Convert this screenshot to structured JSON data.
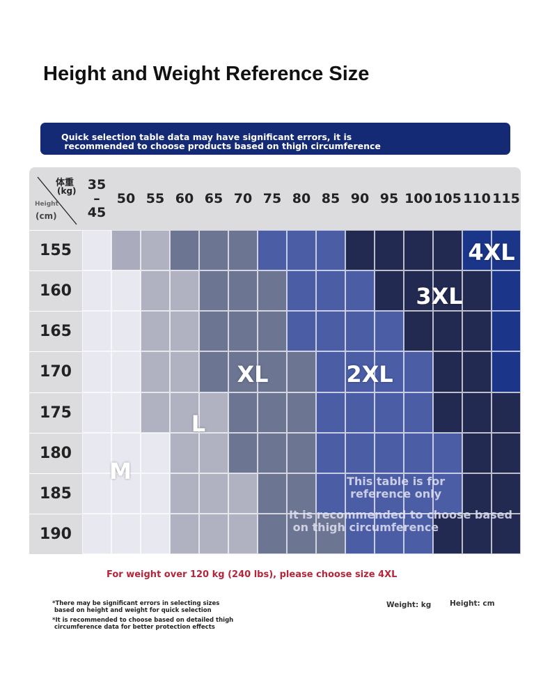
{
  "header": {
    "title": "Height and Weight Reference Size"
  },
  "notice": {
    "text": "Quick selection table data may have significant errors, it is\n recommended to choose products based on thigh circumference"
  },
  "table": {
    "corner": {
      "weight_label": "体重",
      "weight_unit": "(kg)",
      "height_label": "Height",
      "height_unit": "(cm)"
    },
    "columns": [
      "35\n–\n45",
      "50",
      "55",
      "60",
      "65",
      "70",
      "75",
      "80",
      "85",
      "90",
      "95",
      "100",
      "105",
      "110",
      "115"
    ],
    "rows": [
      {
        "height": "155",
        "colors": [
          "#e8e8f0",
          "#aaacbd",
          "#b0b1c1",
          "#6c7592",
          "#6c7592",
          "#6c7592",
          "#4a5da5",
          "#4a5da5",
          "#4a5da5",
          "#222a52",
          "#222a52",
          "#222a52",
          "#222a52",
          "#1b3588",
          "#1b3588"
        ]
      },
      {
        "height": "160",
        "colors": [
          "#e8e8f0",
          "#e8e8f0",
          "#b0b1c1",
          "#b0b1c1",
          "#6c7592",
          "#6c7592",
          "#6c7592",
          "#4a5da5",
          "#4a5da5",
          "#4a5da5",
          "#222a52",
          "#222a52",
          "#222a52",
          "#222a52",
          "#1b3588"
        ]
      },
      {
        "height": "165",
        "colors": [
          "#e8e8f0",
          "#e8e8f0",
          "#b0b1c1",
          "#b0b1c1",
          "#6c7592",
          "#6c7592",
          "#6c7592",
          "#4a5da5",
          "#4a5da5",
          "#4a5da5",
          "#4a5da5",
          "#222a52",
          "#222a52",
          "#222a52",
          "#1b3588"
        ]
      },
      {
        "height": "170",
        "colors": [
          "#e8e8f0",
          "#e8e8f0",
          "#b0b1c1",
          "#b0b1c1",
          "#6c7592",
          "#6c7592",
          "#6c7592",
          "#6c7592",
          "#4a5da5",
          "#4a5da5",
          "#4a5da5",
          "#4a5da5",
          "#222a52",
          "#222a52",
          "#1b3588"
        ]
      },
      {
        "height": "175",
        "colors": [
          "#e8e8f0",
          "#e8e8f0",
          "#b0b1c1",
          "#b0b1c1",
          "#b0b1c1",
          "#6c7592",
          "#6c7592",
          "#6c7592",
          "#4a5da5",
          "#4a5da5",
          "#4a5da5",
          "#4a5da5",
          "#222a52",
          "#222a52",
          "#222a52"
        ]
      },
      {
        "height": "180",
        "colors": [
          "#e8e8f0",
          "#e8e8f0",
          "#e8e8f0",
          "#b0b1c1",
          "#b0b1c1",
          "#6c7592",
          "#6c7592",
          "#6c7592",
          "#4a5da5",
          "#4a5da5",
          "#4a5da5",
          "#4a5da5",
          "#4a5da5",
          "#222a52",
          "#222a52"
        ]
      },
      {
        "height": "185",
        "colors": [
          "#e8e8f0",
          "#e8e8f0",
          "#e8e8f0",
          "#b0b1c1",
          "#b0b1c1",
          "#b0b1c1",
          "#6c7592",
          "#6c7592",
          "#4a5da5",
          "#4a5da5",
          "#4a5da5",
          "#4a5da5",
          "#4a5da5",
          "#222a52",
          "#222a52"
        ]
      },
      {
        "height": "190",
        "colors": [
          "#e8e8f0",
          "#e8e8f0",
          "#e8e8f0",
          "#b0b1c1",
          "#b0b1c1",
          "#b0b1c1",
          "#6c7592",
          "#6c7592",
          "#6c7592",
          "#4a5da5",
          "#4a5da5",
          "#4a5da5",
          "#222a52",
          "#222a52",
          "#222a52"
        ]
      }
    ],
    "size_labels": [
      "4XL",
      "3XL",
      "XL",
      "2XL",
      "L",
      "M"
    ],
    "watermark": [
      "This table is for\nreference only",
      "It is recommended to choose based\n on thigh circumference"
    ]
  },
  "footer": {
    "warning": "For weight over 120 kg (240 lbs), please choose size 4XL",
    "notes": [
      "*There may be significant errors in selecting sizes\n based on height and weight for quick selection",
      "*It is recommended to choose based on detailed thigh\n circumference data for better protection effects"
    ],
    "weight_unit": "Weight: kg",
    "height_unit": "Height: cm"
  }
}
